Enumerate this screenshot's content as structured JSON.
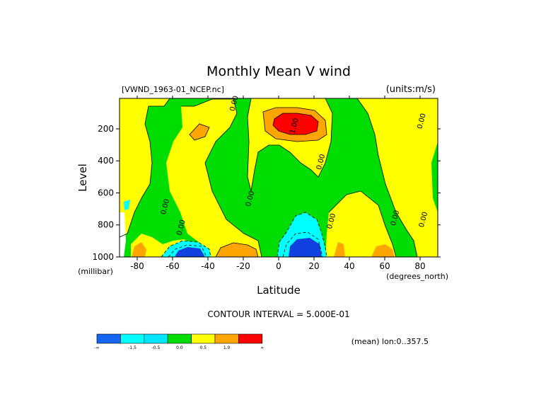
{
  "chart_data": {
    "type": "heatmap",
    "title": "Monthly Mean V wind",
    "file_label": "[VWND_1963-01_NCEP.nc]",
    "units_label": "(units:m/s)",
    "xlabel": "Latitude",
    "ylabel": "Level",
    "x_unit_label": "(degrees_north)",
    "y_unit_label": "(millibar)",
    "xlim": [
      -90,
      90
    ],
    "ylim": [
      1000,
      10
    ],
    "x_ticks": [
      -80,
      -60,
      -40,
      -20,
      0,
      20,
      40,
      60,
      80
    ],
    "y_ticks": [
      200,
      400,
      600,
      800,
      1000
    ],
    "contour_interval_label": "CONTOUR INTERVAL = 5.000E-01",
    "mean_note": "(mean) lon:0..357.5",
    "contour_labels": [
      {
        "text": "0.00",
        "lat": -63,
        "level": 690
      },
      {
        "text": "0.00",
        "lat": -54,
        "level": 820
      },
      {
        "text": "0.00",
        "lat": -15,
        "level": 640
      },
      {
        "text": "0.00",
        "lat": 25,
        "level": 410
      },
      {
        "text": "0.00",
        "lat": 31,
        "level": 780
      },
      {
        "text": "0.00",
        "lat": 67,
        "level": 760
      },
      {
        "text": "0.00",
        "lat": -24,
        "level": 45
      },
      {
        "text": "0.00",
        "lat": 82,
        "level": 155
      },
      {
        "text": "0.00",
        "lat": 83,
        "level": 770
      },
      {
        "text": "1.00",
        "lat": 10,
        "level": 185
      }
    ],
    "legend": {
      "bins": [
        {
          "color": "#1565f0",
          "label": "-∞"
        },
        {
          "color": "#00ffff",
          "label": "-1.5"
        },
        {
          "color": "#00e5ff",
          "label": "-0.5"
        },
        {
          "color": "#00dd00",
          "label": "0.0"
        },
        {
          "color": "#ffff00",
          "label": "0.5"
        },
        {
          "color": "#ffa500",
          "label": "1.0"
        },
        {
          "color": "#ff0000",
          "label": "∞"
        }
      ]
    },
    "colors": {
      "strong_negative": "#1040e0",
      "negative": "#00ffff",
      "zero": "#00dd00",
      "positive": "#ffff00",
      "strong_positive": "#ffa500",
      "max": "#ff0000"
    }
  }
}
